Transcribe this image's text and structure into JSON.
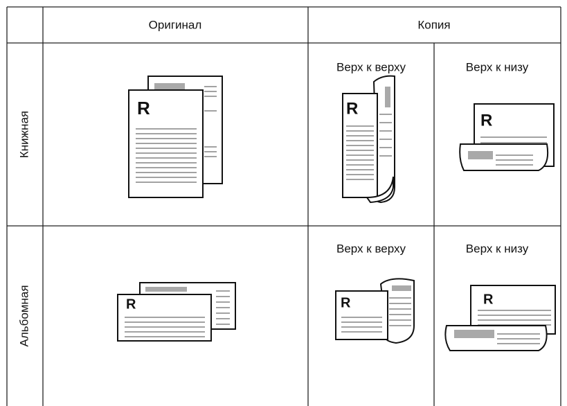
{
  "table": {
    "header": [
      "Оригинал",
      "Копия"
    ],
    "rows": [
      {
        "label": "Книжная",
        "copy_labels": [
          "Верх к верху",
          "Верх к низу"
        ]
      },
      {
        "label": "Альбомная",
        "copy_labels": [
          "Верх к верху",
          "Верх к низу"
        ]
      }
    ],
    "page_letter": "R"
  }
}
